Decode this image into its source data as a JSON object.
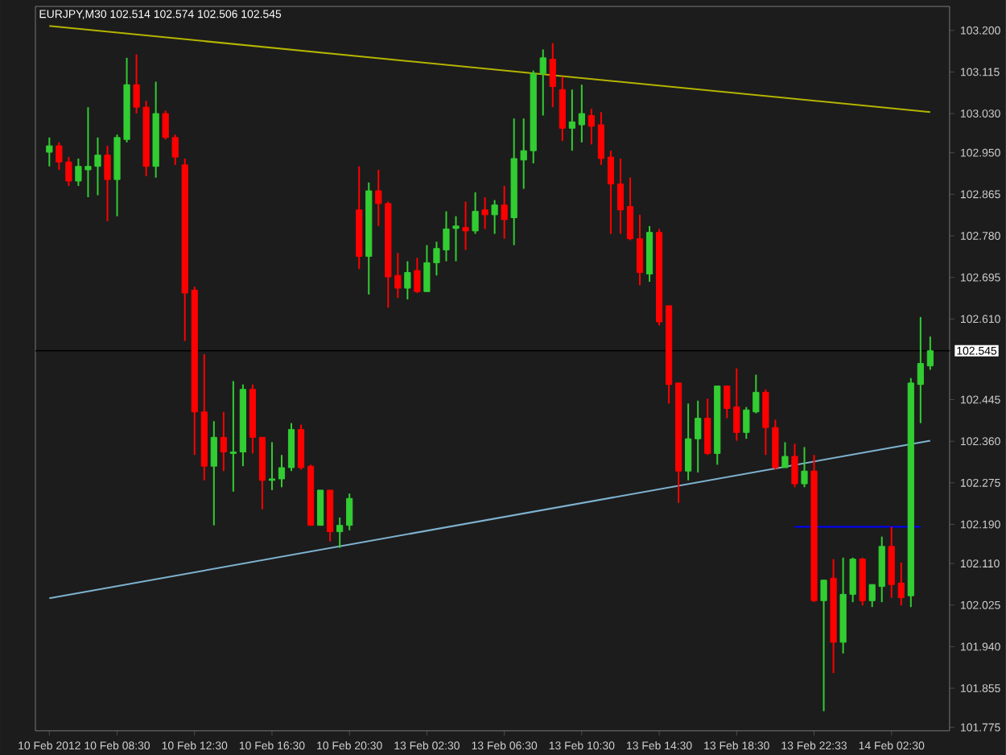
{
  "chart_data": {
    "type": "candlestick",
    "title": "EURJPY,M30  102.514 102.574 102.506 102.545",
    "categories": [
      "10 Feb 2012",
      null,
      null,
      null,
      null,
      null,
      null,
      "10 Feb 08:30",
      null,
      null,
      null,
      null,
      null,
      null,
      null,
      "10 Feb 12:30",
      null,
      null,
      null,
      null,
      null,
      null,
      null,
      "10 Feb 16:30",
      null,
      null,
      null,
      null,
      null,
      null,
      null,
      "10 Feb 20:30",
      null,
      null,
      null,
      null,
      null,
      null,
      null,
      "13 Feb 02:30",
      null,
      null,
      null,
      null,
      null,
      null,
      null,
      "13 Feb 06:30",
      null,
      null,
      null,
      null,
      null,
      null,
      null,
      "13 Feb 10:30",
      null,
      null,
      null,
      null,
      null,
      null,
      null,
      "13 Feb 14:30",
      null,
      null,
      null,
      null,
      null,
      null,
      null,
      "13 Feb 18:30",
      null,
      null,
      null,
      null,
      null,
      null,
      null,
      "13 Feb 22:33",
      null,
      null,
      null,
      null,
      null,
      null,
      null,
      "14 Feb 02:30",
      null,
      null,
      null,
      null
    ],
    "ohlc": [
      [
        102.951,
        102.981,
        102.922,
        102.964
      ],
      [
        102.964,
        102.971,
        102.915,
        102.931
      ],
      [
        102.931,
        102.941,
        102.882,
        102.892
      ],
      [
        102.892,
        102.938,
        102.882,
        102.922
      ],
      [
        102.915,
        103.043,
        102.859,
        102.922
      ],
      [
        102.922,
        102.981,
        102.863,
        102.945
      ],
      [
        102.945,
        102.964,
        102.81,
        102.895
      ],
      [
        102.895,
        102.987,
        102.82,
        102.981
      ],
      [
        102.977,
        103.144,
        102.971,
        103.089
      ],
      [
        103.089,
        103.151,
        103.03,
        103.043
      ],
      [
        103.043,
        103.056,
        102.902,
        102.922
      ],
      [
        102.922,
        103.095,
        102.899,
        103.03
      ],
      [
        103.03,
        103.036,
        102.977,
        102.981
      ],
      [
        102.981,
        102.987,
        102.925,
        102.941
      ],
      [
        102.925,
        102.938,
        102.565,
        102.663
      ],
      [
        102.669,
        102.676,
        102.332,
        102.42
      ],
      [
        102.42,
        102.538,
        102.28,
        102.309
      ],
      [
        102.309,
        102.401,
        102.188,
        102.368
      ],
      [
        102.368,
        102.42,
        102.299,
        102.338
      ],
      [
        102.335,
        102.483,
        102.257,
        102.338
      ],
      [
        102.338,
        102.476,
        102.309,
        102.466
      ],
      [
        102.466,
        102.476,
        102.335,
        102.368
      ],
      [
        102.368,
        102.368,
        102.221,
        102.28
      ],
      [
        102.28,
        102.358,
        102.26,
        102.283
      ],
      [
        102.283,
        102.332,
        102.266,
        102.306
      ],
      [
        102.306,
        102.397,
        102.299,
        102.384
      ],
      [
        102.384,
        102.394,
        102.302,
        102.306
      ],
      [
        102.309,
        102.312,
        102.188,
        102.188
      ],
      [
        102.188,
        102.26,
        102.188,
        102.26
      ],
      [
        102.26,
        102.26,
        102.155,
        102.175
      ],
      [
        102.175,
        102.204,
        102.142,
        102.188
      ],
      [
        102.188,
        102.253,
        102.178,
        102.243
      ],
      [
        102.833,
        102.922,
        102.712,
        102.738
      ],
      [
        102.738,
        102.889,
        102.66,
        102.872
      ],
      [
        102.872,
        102.915,
        102.8,
        102.846
      ],
      [
        102.846,
        102.85,
        102.633,
        102.696
      ],
      [
        102.699,
        102.745,
        102.653,
        102.673
      ],
      [
        102.673,
        102.728,
        102.65,
        102.705
      ],
      [
        102.709,
        102.735,
        102.663,
        102.666
      ],
      [
        102.666,
        102.761,
        102.666,
        102.725
      ],
      [
        102.725,
        102.768,
        102.699,
        102.754
      ],
      [
        102.751,
        102.83,
        102.728,
        102.794
      ],
      [
        102.795,
        102.82,
        102.728,
        102.8
      ],
      [
        102.797,
        102.85,
        102.751,
        102.79
      ],
      [
        102.79,
        102.869,
        102.784,
        102.83
      ],
      [
        102.833,
        102.859,
        102.794,
        102.823
      ],
      [
        102.823,
        102.853,
        102.784,
        102.843
      ],
      [
        102.843,
        102.882,
        102.774,
        102.813
      ],
      [
        102.817,
        103.02,
        102.761,
        102.938
      ],
      [
        102.935,
        103.02,
        102.876,
        102.954
      ],
      [
        102.954,
        103.118,
        102.928,
        103.112
      ],
      [
        103.112,
        103.161,
        103.026,
        103.144
      ],
      [
        103.141,
        103.174,
        103.043,
        103.085
      ],
      [
        103.079,
        103.105,
        102.974,
        103.0
      ],
      [
        103.0,
        103.079,
        102.954,
        103.013
      ],
      [
        103.007,
        103.089,
        102.971,
        103.03
      ],
      [
        103.026,
        103.04,
        102.967,
        103.004
      ],
      [
        103.007,
        103.033,
        102.925,
        102.938
      ],
      [
        102.941,
        102.954,
        102.784,
        102.886
      ],
      [
        102.886,
        102.938,
        102.784,
        102.833
      ],
      [
        102.84,
        102.899,
        102.771,
        102.774
      ],
      [
        102.774,
        102.823,
        102.679,
        102.705
      ],
      [
        102.702,
        102.8,
        102.686,
        102.787
      ],
      [
        102.787,
        102.794,
        102.597,
        102.604
      ],
      [
        102.637,
        102.637,
        102.437,
        102.476
      ],
      [
        102.479,
        102.479,
        102.234,
        102.299
      ],
      [
        102.299,
        102.437,
        102.28,
        102.365
      ],
      [
        102.365,
        102.443,
        102.296,
        102.407
      ],
      [
        102.407,
        102.447,
        102.332,
        102.335
      ],
      [
        102.335,
        102.473,
        102.312,
        102.473
      ],
      [
        102.473,
        102.473,
        102.407,
        102.427
      ],
      [
        102.43,
        102.509,
        102.361,
        102.378
      ],
      [
        102.378,
        102.43,
        102.365,
        102.424
      ],
      [
        102.42,
        102.496,
        102.417,
        102.46
      ],
      [
        102.46,
        102.466,
        102.332,
        102.388
      ],
      [
        102.388,
        102.404,
        102.302,
        102.306
      ],
      [
        102.306,
        102.358,
        102.306,
        102.329
      ],
      [
        102.329,
        102.355,
        102.266,
        102.273
      ],
      [
        102.273,
        102.348,
        102.266,
        102.299
      ],
      [
        102.299,
        102.332,
        102.031,
        102.034
      ],
      [
        102.034,
        102.076,
        101.808,
        102.076
      ],
      [
        102.08,
        102.119,
        101.886,
        101.949
      ],
      [
        101.949,
        102.122,
        101.926,
        102.047
      ],
      [
        102.047,
        102.122,
        102.031,
        102.119
      ],
      [
        102.119,
        102.122,
        102.024,
        102.034
      ],
      [
        102.034,
        102.067,
        102.021,
        102.067
      ],
      [
        102.063,
        102.165,
        102.031,
        102.145
      ],
      [
        102.145,
        102.185,
        102.04,
        102.067
      ],
      [
        102.07,
        102.112,
        102.024,
        102.04
      ],
      [
        102.044,
        102.489,
        102.021,
        102.479
      ],
      [
        102.476,
        102.614,
        102.397,
        102.519
      ],
      [
        102.514,
        102.574,
        102.506,
        102.545
      ]
    ],
    "colors": [
      "#32cd32",
      "#ff0000",
      "#ff0000",
      "#32cd32",
      "#32cd32",
      "#32cd32",
      "#ff0000",
      "#32cd32",
      "#32cd32",
      "#ff0000",
      "#ff0000",
      "#32cd32",
      "#ff0000",
      "#ff0000",
      "#ff0000",
      "#ff0000",
      "#ff0000",
      "#32cd32",
      "#ff0000",
      "#32cd32",
      "#32cd32",
      "#ff0000",
      "#ff0000",
      "#32cd32",
      "#32cd32",
      "#32cd32",
      "#ff0000",
      "#ff0000",
      "#32cd32",
      "#ff0000",
      "#32cd32",
      "#32cd32",
      "#ff0000",
      "#32cd32",
      "#ff0000",
      "#ff0000",
      "#ff0000",
      "#32cd32",
      "#ff0000",
      "#32cd32",
      "#32cd32",
      "#32cd32",
      "#32cd32",
      "#ff0000",
      "#32cd32",
      "#ff0000",
      "#32cd32",
      "#ff0000",
      "#32cd32",
      "#32cd32",
      "#32cd32",
      "#32cd32",
      "#ff0000",
      "#ff0000",
      "#32cd32",
      "#32cd32",
      "#ff0000",
      "#ff0000",
      "#ff0000",
      "#ff0000",
      "#ff0000",
      "#ff0000",
      "#32cd32",
      "#ff0000",
      "#ff0000",
      "#ff0000",
      "#32cd32",
      "#32cd32",
      "#ff0000",
      "#32cd32",
      "#ff0000",
      "#ff0000",
      "#32cd32",
      "#32cd32",
      "#ff0000",
      "#ff0000",
      "#32cd32",
      "#ff0000",
      "#32cd32",
      "#ff0000",
      "#32cd32",
      "#ff0000",
      "#32cd32",
      "#32cd32",
      "#ff0000",
      "#32cd32",
      "#32cd32",
      "#ff0000",
      "#ff0000",
      "#32cd32",
      "#32cd32",
      "#32cd32"
    ],
    "series": [
      {
        "type": "line",
        "color": "#b4b400",
        "values": [
          103.209,
          null,
          null,
          null,
          null,
          null,
          null,
          null,
          null,
          null,
          null,
          null,
          null,
          null,
          null,
          null,
          null,
          null,
          null,
          null,
          null,
          null,
          null,
          null,
          null,
          null,
          null,
          null,
          null,
          null,
          null,
          null,
          null,
          null,
          null,
          null,
          null,
          null,
          null,
          null,
          null,
          null,
          null,
          null,
          null,
          null,
          null,
          null,
          null,
          null,
          null,
          null,
          null,
          null,
          null,
          null,
          null,
          null,
          null,
          null,
          null,
          null,
          null,
          null,
          null,
          null,
          null,
          null,
          null,
          null,
          null,
          null,
          null,
          null,
          null,
          null,
          null,
          null,
          null,
          null,
          null,
          null,
          null,
          null,
          null,
          null,
          null,
          null,
          null,
          null,
          null,
          103.033
        ]
      },
      {
        "type": "line",
        "color": "#7eb2d0",
        "values": [
          102.039,
          null,
          null,
          null,
          null,
          null,
          null,
          null,
          null,
          null,
          null,
          null,
          null,
          null,
          null,
          null,
          null,
          null,
          null,
          null,
          null,
          null,
          null,
          null,
          null,
          null,
          null,
          null,
          null,
          null,
          null,
          null,
          null,
          null,
          null,
          null,
          null,
          null,
          null,
          null,
          null,
          null,
          null,
          null,
          null,
          null,
          null,
          null,
          null,
          null,
          null,
          null,
          null,
          null,
          null,
          null,
          null,
          null,
          null,
          null,
          null,
          null,
          null,
          null,
          null,
          null,
          null,
          null,
          null,
          null,
          null,
          null,
          null,
          null,
          null,
          null,
          null,
          null,
          null,
          null,
          null,
          null,
          null,
          null,
          null,
          null,
          null,
          null,
          null,
          null,
          null,
          102.361
        ]
      },
      {
        "type": "line",
        "color": "#0000ff",
        "values": [
          null,
          null,
          null,
          null,
          null,
          null,
          null,
          null,
          null,
          null,
          null,
          null,
          null,
          null,
          null,
          null,
          null,
          null,
          null,
          null,
          null,
          null,
          null,
          null,
          null,
          null,
          null,
          null,
          null,
          null,
          null,
          null,
          null,
          null,
          null,
          null,
          null,
          null,
          null,
          null,
          null,
          null,
          null,
          null,
          null,
          null,
          null,
          null,
          null,
          null,
          null,
          null,
          null,
          null,
          null,
          null,
          null,
          null,
          null,
          null,
          null,
          null,
          null,
          null,
          null,
          null,
          null,
          null,
          null,
          null,
          null,
          null,
          null,
          null,
          null,
          null,
          null,
          102.185,
          null,
          null,
          null,
          null,
          null,
          null,
          null,
          null,
          null,
          null,
          null,
          null,
          102.185,
          null
        ]
      }
    ],
    "ref_lines": [
      {
        "axis": "y",
        "value": 102.545,
        "label": "102.545",
        "color": "#000000"
      }
    ],
    "ylim": [
      101.768,
      103.249
    ],
    "yticks": [
      {
        "value": 103.2,
        "label": "103.200"
      },
      {
        "value": 103.115,
        "label": "103.115"
      },
      {
        "value": 103.03,
        "label": "103.030"
      },
      {
        "value": 102.95,
        "label": "102.950"
      },
      {
        "value": 102.865,
        "label": "102.865"
      },
      {
        "value": 102.78,
        "label": "102.780"
      },
      {
        "value": 102.695,
        "label": "102.695"
      },
      {
        "value": 102.61,
        "label": "102.610"
      },
      {
        "value": 102.445,
        "label": "102.445"
      },
      {
        "value": 102.36,
        "label": "102.360"
      },
      {
        "value": 102.275,
        "label": "102.275"
      },
      {
        "value": 102.19,
        "label": "102.190"
      },
      {
        "value": 102.11,
        "label": "102.110"
      },
      {
        "value": 102.025,
        "label": "102.025"
      },
      {
        "value": 101.94,
        "label": "101.940"
      },
      {
        "value": 101.855,
        "label": "101.855"
      },
      {
        "value": 101.775,
        "label": "101.775"
      }
    ]
  }
}
